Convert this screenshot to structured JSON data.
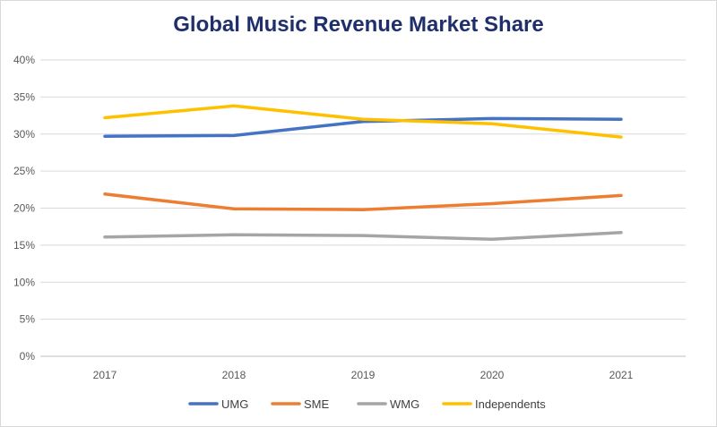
{
  "chart_data": {
    "type": "line",
    "title": "Global Music Revenue Market Share",
    "xlabel": "",
    "ylabel": "",
    "categories": [
      "2017",
      "2018",
      "2019",
      "2020",
      "2021"
    ],
    "ylim": [
      0,
      40
    ],
    "yticks": [
      0,
      5,
      10,
      15,
      20,
      25,
      30,
      35,
      40
    ],
    "ytick_labels": [
      "0%",
      "5%",
      "10%",
      "15%",
      "20%",
      "25%",
      "30%",
      "35%",
      "40%"
    ],
    "grid": true,
    "legend_position": "bottom",
    "series": [
      {
        "name": "UMG",
        "color": "#4472c4",
        "values": [
          29.7,
          29.8,
          31.7,
          32.1,
          32.0
        ]
      },
      {
        "name": "SME",
        "color": "#ed7d31",
        "values": [
          21.9,
          19.9,
          19.8,
          20.6,
          21.7
        ]
      },
      {
        "name": "WMG",
        "color": "#a5a5a5",
        "values": [
          16.1,
          16.4,
          16.3,
          15.8,
          16.7
        ]
      },
      {
        "name": "Independents",
        "color": "#ffc000",
        "values": [
          32.2,
          33.8,
          32.0,
          31.4,
          29.6
        ]
      }
    ]
  }
}
